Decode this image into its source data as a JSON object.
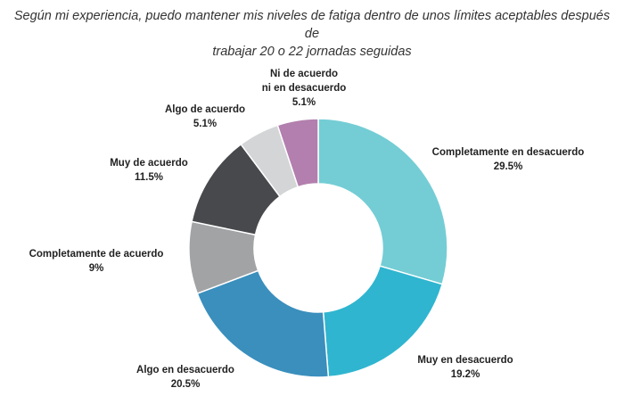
{
  "chart_data": {
    "type": "pie",
    "variant": "donut",
    "title_lines": [
      "Según mi experiencia, puedo mantener mis niveles de fatiga dentro de unos límites aceptables después de",
      "trabajar 20 o 22 jornadas seguidas"
    ],
    "slices": [
      {
        "label_lines": [
          "Completamente en desacuerdo"
        ],
        "value": 29.5,
        "value_label": "29.5%",
        "color": "#74cdd5"
      },
      {
        "label_lines": [
          "Muy en desacuerdo"
        ],
        "value": 19.2,
        "value_label": "19.2%",
        "color": "#2fb5d0"
      },
      {
        "label_lines": [
          "Algo en desacuerdo"
        ],
        "value": 20.5,
        "value_label": "20.5%",
        "color": "#3a8fbd"
      },
      {
        "label_lines": [
          "Completamente de acuerdo"
        ],
        "value": 9,
        "value_label": "9%",
        "color": "#a1a3a5"
      },
      {
        "label_lines": [
          "Muy de acuerdo"
        ],
        "value": 11.5,
        "value_label": "11.5%",
        "color": "#48494c"
      },
      {
        "label_lines": [
          "Algo de acuerdo"
        ],
        "value": 5.1,
        "value_label": "5.1%",
        "color": "#d3d5d7"
      },
      {
        "label_lines": [
          "Ni de acuerdo",
          "ni en desacuerdo"
        ],
        "value": 5.1,
        "value_label": "5.1%",
        "color": "#b27fae"
      }
    ]
  }
}
